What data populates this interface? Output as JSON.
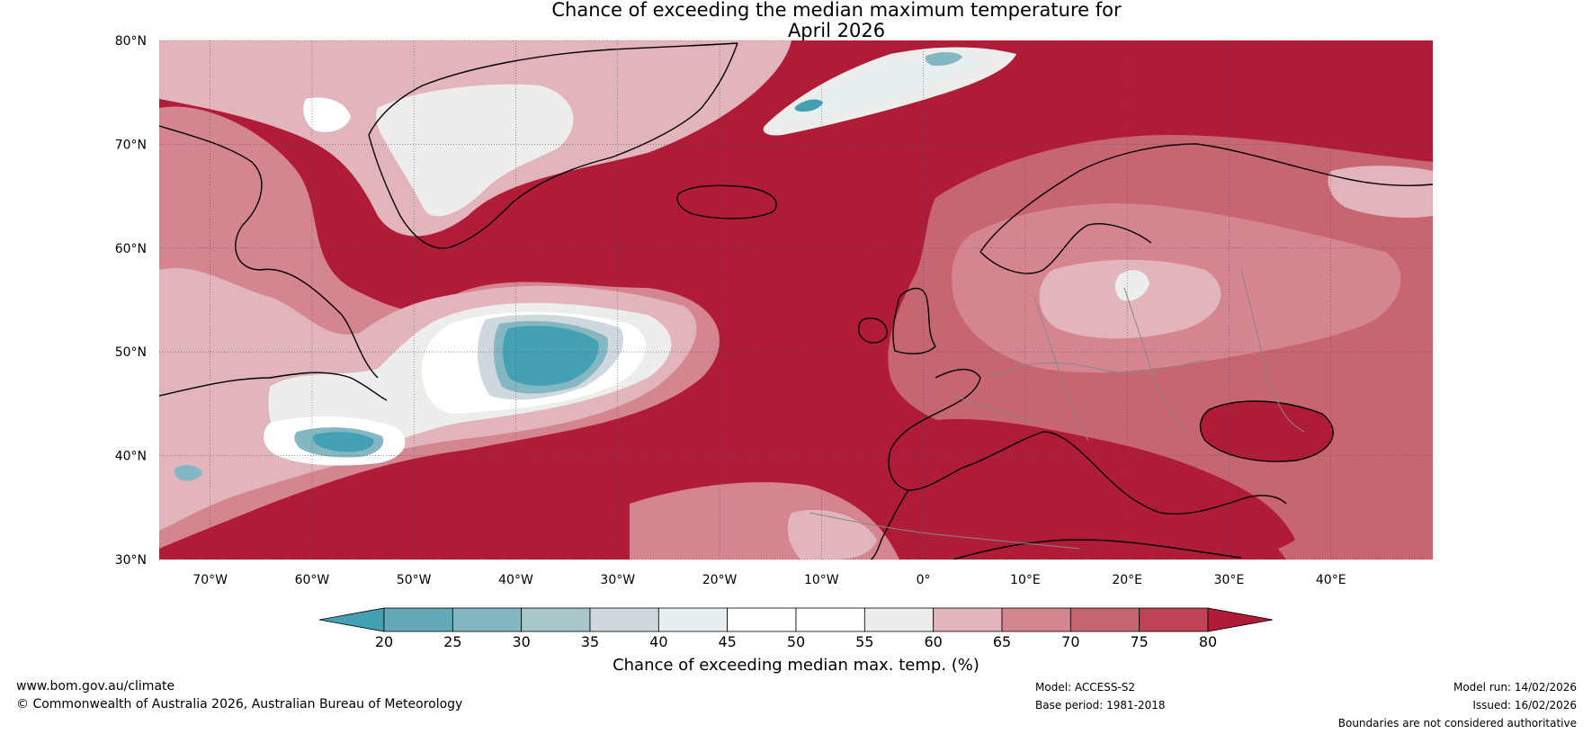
{
  "title": {
    "line1": "Chance of exceeding the median maximum temperature for",
    "line2": "April 2026"
  },
  "map": {
    "type": "probability-map",
    "lat_range": [
      30,
      80
    ],
    "lon_range": [
      -75,
      50
    ],
    "lat_ticks": [
      "80°N",
      "70°N",
      "60°N",
      "50°N",
      "40°N",
      "30°N"
    ],
    "lat_values": [
      80,
      70,
      60,
      50,
      40,
      30
    ],
    "lon_ticks": [
      "70°W",
      "60°W",
      "50°W",
      "40°W",
      "30°W",
      "20°W",
      "10°W",
      "0°",
      "10°E",
      "20°E",
      "30°E",
      "40°E"
    ],
    "lon_values": [
      -70,
      -60,
      -50,
      -40,
      -30,
      -20,
      -10,
      0,
      10,
      20,
      30,
      40
    ],
    "colors": {
      "lt20": "#44a0b3",
      "c20_25": "#64a9b8",
      "c25_30": "#85b7c2",
      "c30_35": "#a9c6cb",
      "c35_40": "#cfd8dc",
      "c40_45": "#e8eff1",
      "c45_50": "#ffffff",
      "c50_55": "#ffffff",
      "c55_60": "#ededec",
      "c60_65": "#e2b5bc",
      "c65_70": "#d48590",
      "c70_75": "#c76570",
      "c75_80": "#bd4355",
      "gt80": "#b01c38",
      "coast": "#000000",
      "border": "#888888"
    }
  },
  "colorbar": {
    "ticks": [
      "20",
      "25",
      "30",
      "35",
      "40",
      "45",
      "50",
      "55",
      "60",
      "65",
      "70",
      "75",
      "80"
    ],
    "label": "Chance of exceeding median max. temp. (%)",
    "colors": [
      "#44a0b3",
      "#64a9b8",
      "#85b7c2",
      "#a9c6cb",
      "#cfd8dc",
      "#e8eff1",
      "#ffffff",
      "#ffffff",
      "#ededec",
      "#e2b5bc",
      "#d48590",
      "#c76570",
      "#bd4355",
      "#b01c38"
    ]
  },
  "footer": {
    "website": "www.bom.gov.au/climate",
    "copyright": "© Commonwealth of Australia 2026, Australian Bureau of Meteorology",
    "model": "Model: ACCESS-S2",
    "base_period": "Base period: 1981-2018",
    "model_run": "Model run: 14/02/2026",
    "issued": "Issued: 16/02/2026",
    "disclaimer": "Boundaries are not considered authoritative"
  }
}
